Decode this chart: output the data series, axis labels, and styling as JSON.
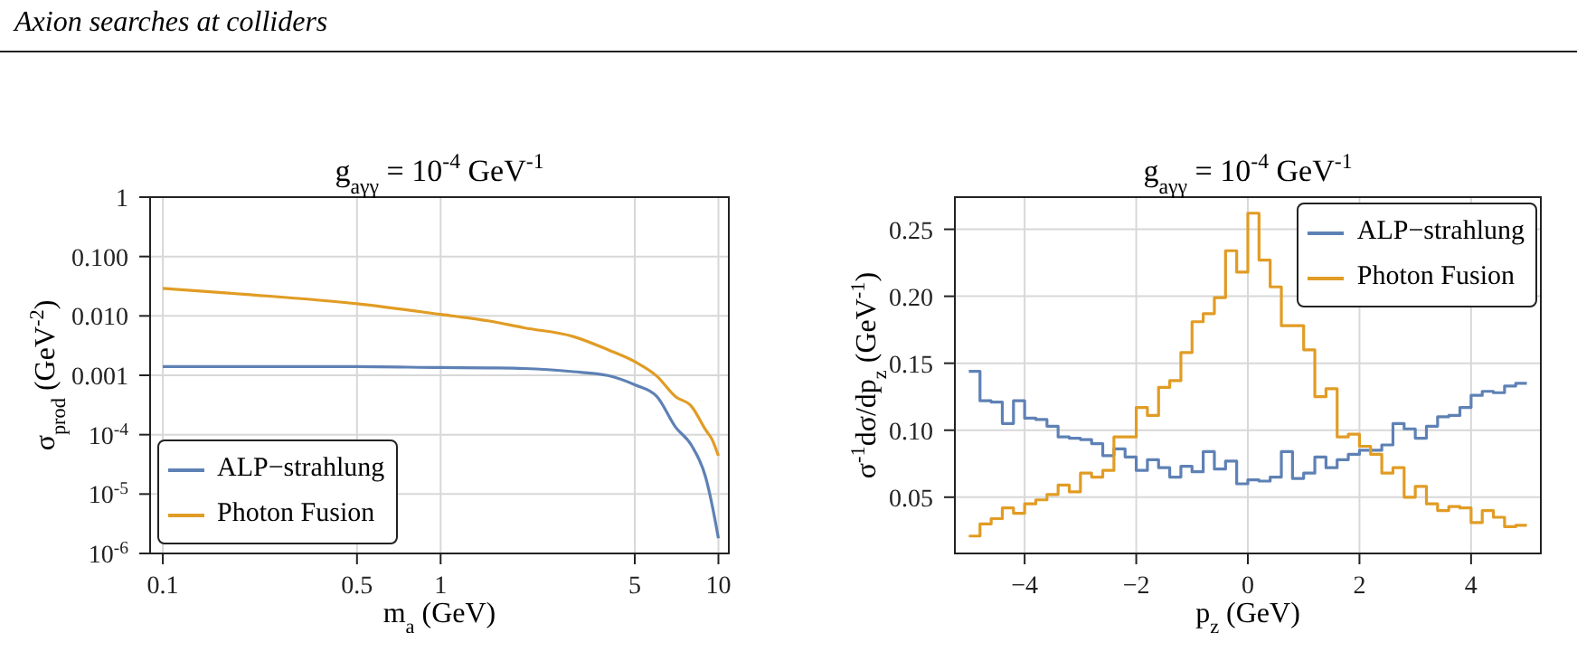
{
  "chart_data": [
    {
      "type": "line",
      "annotations": [
        "Axion searches at colliders"
      ],
      "title": "g$_{aγγ}$ = 10$^{-4}$ GeV$^{-1}$",
      "xlabel": "m$_{a}$ (GeV)",
      "ylabel": "σ$_{prod}$ (GeV$^{-2}$)",
      "log": "xy",
      "grid": true,
      "legend": "bottom left",
      "x": [
        0.1,
        0.2,
        0.5,
        1,
        1.5,
        2,
        3,
        4,
        5,
        6,
        7,
        8,
        9,
        9.5,
        10
      ],
      "series": [
        {
          "name": "ALP−strahlung",
          "color": "#5e81b5",
          "values": [
            0.0014,
            0.0014,
            0.0014,
            0.00135,
            0.00133,
            0.0013,
            0.00115,
            0.00099,
            0.00069,
            0.00044,
            0.000135,
            6.6e-05,
            1.9e-05,
            6.4e-06,
            1.8e-06
          ]
        },
        {
          "name": "Photon Fusion",
          "color": "#e19c24",
          "values": [
            0.029,
            0.023,
            0.016,
            0.0106,
            0.0082,
            0.0063,
            0.0045,
            0.0027,
            0.0017,
            0.00097,
            0.00044,
            0.0003,
            0.00012,
            8.2e-05,
            4.4e-05
          ]
        }
      ],
      "xlim": [
        0.09,
        10.9
      ],
      "ylim": [
        1e-06,
        1
      ],
      "xticks": [
        0.1,
        0.5,
        1,
        5,
        10
      ],
      "yticks": [
        {
          "value": 1e-06,
          "label": "10$^{-6}$"
        },
        {
          "value": 1e-05,
          "label": "10$^{-5}$"
        },
        {
          "value": 0.0001,
          "label": "10$^{-4}$"
        },
        {
          "value": 0.001,
          "label": "0.001"
        },
        {
          "value": 0.01,
          "label": "0.010"
        },
        {
          "value": 0.1,
          "label": "0.100"
        },
        1
      ]
    },
    {
      "type": "histogram",
      "title": "g$_{aγγ}$ = 10$^{-4}$ GeV$^{-1}$",
      "xlabel": "p$_{z}$ (GeV)",
      "ylabel": "σ$^{-1}$dσ/dp$_{z}$ (GeV$^{-1}$)",
      "grid": true,
      "legend": "top right",
      "bins": [
        -5,
        -4.8,
        -4.6,
        -4.4,
        -4.2,
        -4,
        -3.8,
        -3.6,
        -3.4,
        -3.2,
        -3,
        -2.8,
        -2.6,
        -2.4,
        -2.2,
        -2,
        -1.8,
        -1.6,
        -1.4,
        -1.2,
        -1,
        -0.8,
        -0.6,
        -0.4,
        -0.2,
        0,
        0.2,
        0.4,
        0.6,
        0.8,
        1,
        1.2,
        1.4,
        1.6,
        1.8,
        2,
        2.2,
        2.4,
        2.6,
        2.8,
        3,
        3.2,
        3.4,
        3.6,
        3.8,
        4,
        4.2,
        4.4,
        4.6,
        4.8,
        5
      ],
      "series": [
        {
          "name": "ALP−strahlung",
          "color": "#5e81b5",
          "values": [
            0.144,
            0.122,
            0.121,
            0.105,
            0.122,
            0.109,
            0.108,
            0.103,
            0.095,
            0.094,
            0.093,
            0.09,
            0.081,
            0.086,
            0.08,
            0.07,
            0.078,
            0.072,
            0.065,
            0.073,
            0.069,
            0.084,
            0.071,
            0.077,
            0.06,
            0.063,
            0.062,
            0.065,
            0.084,
            0.064,
            0.068,
            0.08,
            0.072,
            0.078,
            0.082,
            0.085,
            0.085,
            0.089,
            0.105,
            0.101,
            0.094,
            0.103,
            0.11,
            0.111,
            0.117,
            0.126,
            0.129,
            0.128,
            0.133,
            0.135
          ]
        },
        {
          "name": "Photon Fusion",
          "color": "#e19c24",
          "values": [
            0.021,
            0.03,
            0.034,
            0.042,
            0.038,
            0.045,
            0.048,
            0.052,
            0.059,
            0.054,
            0.068,
            0.065,
            0.07,
            0.095,
            0.095,
            0.117,
            0.111,
            0.132,
            0.137,
            0.158,
            0.181,
            0.187,
            0.199,
            0.234,
            0.218,
            0.262,
            0.227,
            0.207,
            0.178,
            0.178,
            0.16,
            0.125,
            0.131,
            0.095,
            0.097,
            0.088,
            0.082,
            0.068,
            0.072,
            0.05,
            0.058,
            0.045,
            0.04,
            0.043,
            0.042,
            0.031,
            0.04,
            0.035,
            0.028,
            0.029
          ]
        }
      ],
      "xlim": [
        -5.25,
        5.25
      ],
      "ylim": [
        0.008,
        0.274
      ],
      "xticks": [
        {
          "value": -4,
          "label": "−4"
        },
        {
          "value": -2,
          "label": "−2"
        },
        0,
        2,
        4
      ],
      "yticks": [
        0.05,
        {
          "value": 0.1,
          "label": "0.10"
        },
        0.15,
        {
          "value": 0.2,
          "label": "0.20"
        },
        0.25
      ]
    }
  ]
}
